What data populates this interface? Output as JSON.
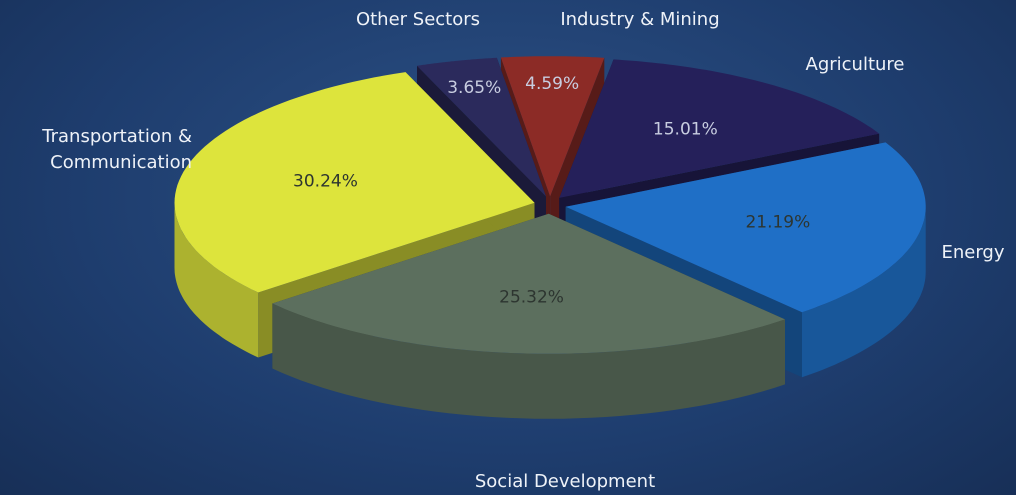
{
  "chart_data": {
    "type": "pie3d",
    "categories": [
      "Other Sectors",
      "Industry & Mining",
      "Agriculture",
      "Energy",
      "Social Development",
      "Transportation & Communication"
    ],
    "values": [
      3.65,
      4.59,
      15.01,
      21.19,
      25.32,
      30.24
    ],
    "value_labels": [
      "3.65%",
      "4.59%",
      "15.01%",
      "21.19%",
      "25.32%",
      "30.24%"
    ],
    "colors": [
      "#2b2a5c",
      "#8c2b26",
      "#25205a",
      "#1f6fc6",
      "#5c6f5e",
      "#dde43c"
    ]
  }
}
